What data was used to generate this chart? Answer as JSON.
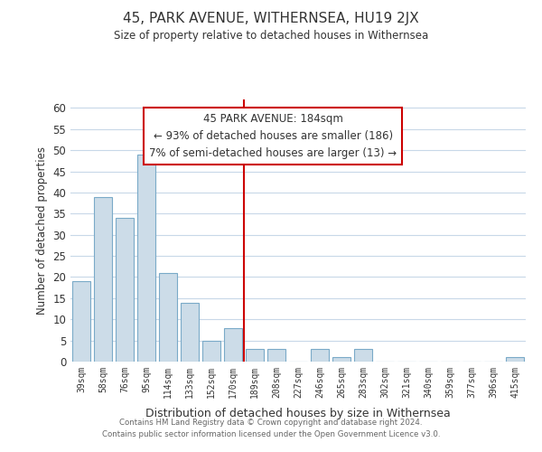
{
  "title": "45, PARK AVENUE, WITHERNSEA, HU19 2JX",
  "subtitle": "Size of property relative to detached houses in Withernsea",
  "xlabel": "Distribution of detached houses by size in Withernsea",
  "ylabel": "Number of detached properties",
  "bar_color": "#ccdce8",
  "bar_edge_color": "#7aaac8",
  "grid_color": "#c8d8e8",
  "background_color": "#ffffff",
  "bin_labels": [
    "39sqm",
    "58sqm",
    "76sqm",
    "95sqm",
    "114sqm",
    "133sqm",
    "152sqm",
    "170sqm",
    "189sqm",
    "208sqm",
    "227sqm",
    "246sqm",
    "265sqm",
    "283sqm",
    "302sqm",
    "321sqm",
    "340sqm",
    "359sqm",
    "377sqm",
    "396sqm",
    "415sqm"
  ],
  "bar_values": [
    19,
    39,
    34,
    49,
    21,
    14,
    5,
    8,
    3,
    3,
    0,
    3,
    1,
    3,
    0,
    0,
    0,
    0,
    0,
    0,
    1
  ],
  "ylim": [
    0,
    62
  ],
  "yticks": [
    0,
    5,
    10,
    15,
    20,
    25,
    30,
    35,
    40,
    45,
    50,
    55,
    60
  ],
  "property_line_color": "#cc0000",
  "annotation_title": "45 PARK AVENUE: 184sqm",
  "annotation_line1": "← 93% of detached houses are smaller (186)",
  "annotation_line2": "7% of semi-detached houses are larger (13) →",
  "annotation_box_color": "#ffffff",
  "annotation_box_edge_color": "#cc0000",
  "footer_line1": "Contains HM Land Registry data © Crown copyright and database right 2024.",
  "footer_line2": "Contains public sector information licensed under the Open Government Licence v3.0."
}
